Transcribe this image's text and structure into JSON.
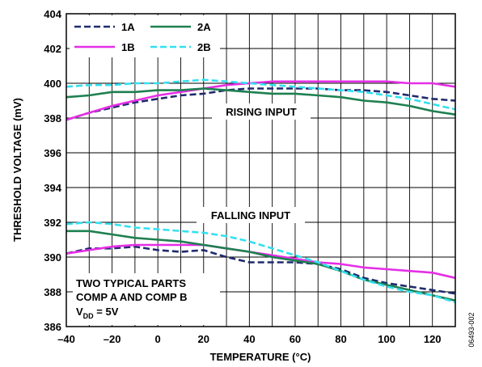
{
  "chart_data": {
    "type": "line",
    "title": "",
    "xlabel": "TEMPERATURE (°C)",
    "ylabel": "THRESHOLD VOLTAGE (mV)",
    "xlim": [
      -40,
      130
    ],
    "ylim": [
      386,
      404
    ],
    "xticks": [
      -40,
      -20,
      0,
      20,
      40,
      60,
      80,
      100,
      120
    ],
    "xtick_labels": [
      "–40",
      "–20",
      "0",
      "20",
      "40",
      "60",
      "80",
      "100",
      "120"
    ],
    "yticks": [
      386,
      388,
      390,
      392,
      394,
      396,
      398,
      400,
      402,
      404
    ],
    "grid": true,
    "legend": {
      "placement": "top-left",
      "columns": 2
    },
    "series": [
      {
        "name": "1A",
        "group": "rising",
        "color": "#1f2a6e",
        "dash": "dashed",
        "x": [
          -40,
          -30,
          -20,
          -10,
          0,
          10,
          20,
          30,
          40,
          50,
          60,
          70,
          80,
          90,
          100,
          110,
          120,
          130
        ],
        "y": [
          397.9,
          398.3,
          398.6,
          398.9,
          399.1,
          399.3,
          399.4,
          399.6,
          399.7,
          399.7,
          399.7,
          399.7,
          399.6,
          399.6,
          399.5,
          399.3,
          399.1,
          399.0
        ]
      },
      {
        "name": "1B",
        "group": "rising",
        "color": "#e62ee6",
        "dash": "solid",
        "x": [
          -40,
          -30,
          -20,
          -10,
          0,
          10,
          20,
          30,
          40,
          50,
          60,
          70,
          80,
          90,
          100,
          110,
          120,
          130
        ],
        "y": [
          397.9,
          398.3,
          398.7,
          399.0,
          399.3,
          399.5,
          399.7,
          399.9,
          400.0,
          400.1,
          400.1,
          400.1,
          400.1,
          400.1,
          400.1,
          400.0,
          400.0,
          399.8
        ]
      },
      {
        "name": "2A",
        "group": "rising",
        "color": "#1e8050",
        "dash": "solid",
        "x": [
          -40,
          -30,
          -20,
          -10,
          0,
          10,
          20,
          30,
          40,
          50,
          60,
          70,
          80,
          90,
          100,
          110,
          120,
          130
        ],
        "y": [
          399.2,
          399.3,
          399.5,
          399.5,
          399.6,
          399.6,
          399.7,
          399.6,
          399.5,
          399.4,
          399.4,
          399.3,
          399.2,
          399.0,
          398.9,
          398.7,
          398.4,
          398.2
        ]
      },
      {
        "name": "2B",
        "group": "rising",
        "color": "#33e0f0",
        "dash": "dashed",
        "x": [
          -40,
          -30,
          -20,
          -10,
          0,
          10,
          20,
          30,
          40,
          50,
          60,
          70,
          80,
          90,
          100,
          110,
          120,
          130
        ],
        "y": [
          399.8,
          399.9,
          399.9,
          400.0,
          400.0,
          400.1,
          400.2,
          400.1,
          400.0,
          399.9,
          399.8,
          399.7,
          399.6,
          399.5,
          399.3,
          399.1,
          398.8,
          398.5
        ]
      },
      {
        "name": "1A",
        "group": "falling",
        "color": "#1f2a6e",
        "dash": "dashed",
        "x": [
          -40,
          -30,
          -20,
          -10,
          0,
          10,
          20,
          30,
          40,
          50,
          60,
          70,
          80,
          90,
          100,
          110,
          120,
          130
        ],
        "y": [
          390.2,
          390.5,
          390.5,
          390.6,
          390.4,
          390.3,
          390.4,
          390.0,
          389.7,
          389.7,
          389.7,
          389.6,
          389.3,
          388.8,
          388.5,
          388.3,
          388.1,
          387.9
        ]
      },
      {
        "name": "1B",
        "group": "falling",
        "color": "#e62ee6",
        "dash": "solid",
        "x": [
          -40,
          -30,
          -20,
          -10,
          0,
          10,
          20,
          30,
          40,
          50,
          60,
          70,
          80,
          90,
          100,
          110,
          120,
          130
        ],
        "y": [
          390.2,
          390.4,
          390.6,
          390.7,
          390.7,
          390.7,
          390.7,
          390.5,
          390.3,
          390.1,
          389.9,
          389.7,
          389.6,
          389.4,
          389.3,
          389.2,
          389.1,
          388.8
        ]
      },
      {
        "name": "2A",
        "group": "falling",
        "color": "#1e8050",
        "dash": "solid",
        "x": [
          -40,
          -30,
          -20,
          -10,
          0,
          10,
          20,
          30,
          40,
          50,
          60,
          70,
          80,
          90,
          100,
          110,
          120,
          130
        ],
        "y": [
          391.5,
          391.5,
          391.3,
          391.1,
          391.0,
          390.9,
          390.7,
          390.5,
          390.3,
          390.0,
          389.8,
          389.6,
          389.2,
          388.7,
          388.4,
          388.1,
          387.8,
          387.5
        ]
      },
      {
        "name": "2B",
        "group": "falling",
        "color": "#33e0f0",
        "dash": "dashed",
        "x": [
          -40,
          -30,
          -20,
          -10,
          0,
          10,
          20,
          30,
          40,
          50,
          60,
          70,
          80,
          90,
          100,
          110,
          120,
          130
        ],
        "y": [
          391.9,
          392.0,
          391.9,
          391.7,
          391.6,
          391.5,
          391.4,
          391.2,
          390.9,
          390.5,
          390.1,
          389.7,
          389.2,
          388.7,
          388.3,
          388.0,
          387.8,
          387.4
        ]
      }
    ],
    "annotations": {
      "rising": "RISING INPUT",
      "falling": "FALLING INPUT",
      "note_line1": "TWO TYPICAL PARTS",
      "note_line2": "COMP A AND COMP B",
      "note_vdd_v": "V",
      "note_vdd_sub": "DD",
      "note_vdd_rest": " = 5V"
    },
    "figure_code": "06493-002"
  }
}
